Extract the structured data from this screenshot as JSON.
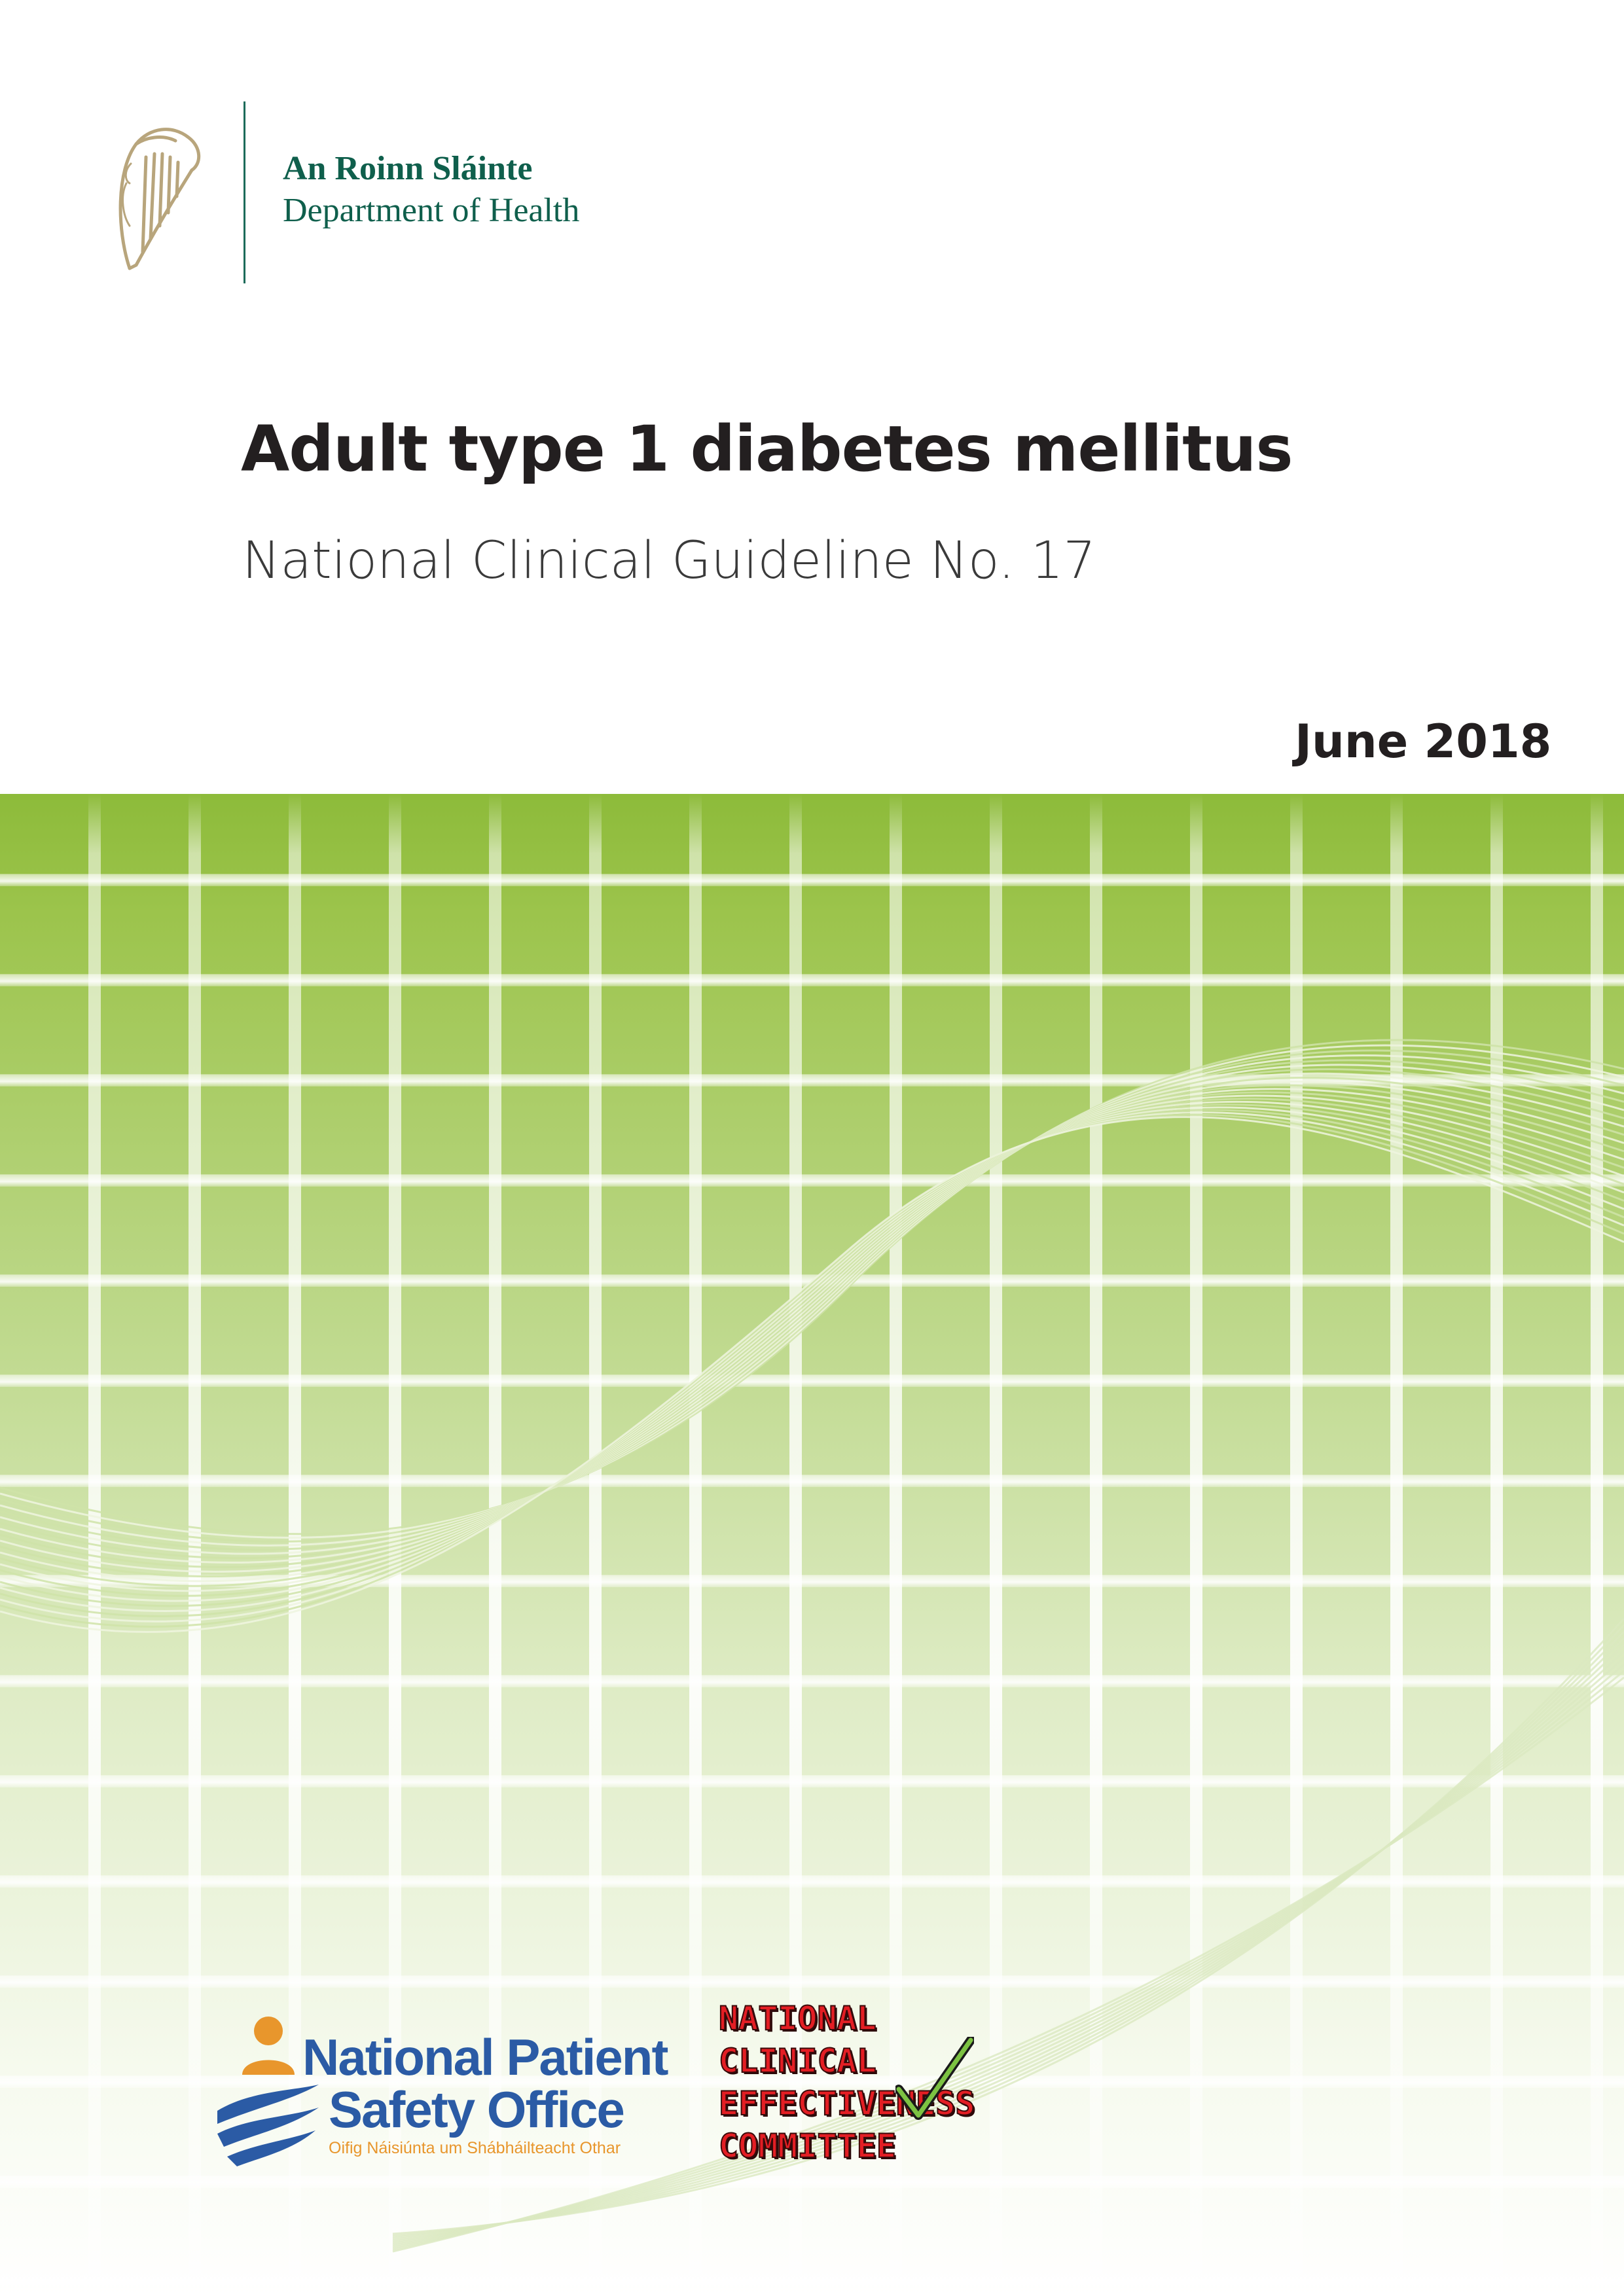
{
  "header": {
    "dept_irish": "An Roinn Sláinte",
    "dept_english": "Department of Health"
  },
  "document": {
    "title": "Adult type 1 diabetes mellitus",
    "subtitle": "National Clinical Guideline No. 17",
    "date": "June 2018"
  },
  "logos": {
    "npso": {
      "line1": "National Patient",
      "line2": "Safety Office",
      "irish": "Oifig Náisiúnta um Shábháilteacht Othar"
    },
    "ncec": {
      "line1": "NATIONAL",
      "line2": "CLINICAL",
      "line3": "EFFECTIVENESS",
      "line4": "COMMITTEE"
    }
  },
  "colors": {
    "dept_green": "#0f5f4c",
    "band_green": "#8dbb3a",
    "npso_blue": "#2b5ba5",
    "npso_orange": "#e8962c",
    "ncec_red": "#e31e24"
  },
  "icons": [
    "irish-harp-icon",
    "npso-person-icon",
    "ncec-check-icon"
  ]
}
